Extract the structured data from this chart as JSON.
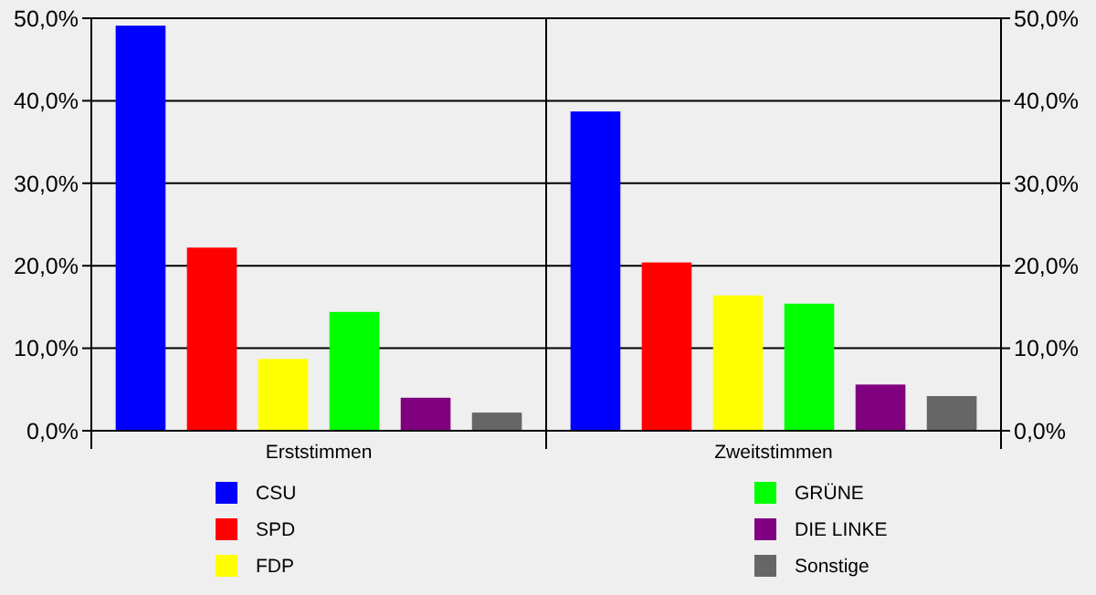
{
  "chart_data": {
    "type": "bar",
    "categories": [
      "Erststimmen",
      "Zweitstimmen"
    ],
    "series": [
      {
        "name": "CSU",
        "color": "#0000ff",
        "values": [
          49.1,
          38.7
        ]
      },
      {
        "name": "SPD",
        "color": "#ff0000",
        "values": [
          22.2,
          20.4
        ]
      },
      {
        "name": "FDP",
        "color": "#ffff00",
        "values": [
          8.7,
          16.4
        ]
      },
      {
        "name": "GRÜNE",
        "color": "#00ff00",
        "values": [
          14.4,
          15.4
        ]
      },
      {
        "name": "DIE LINKE",
        "color": "#800080",
        "values": [
          4.0,
          5.6
        ]
      },
      {
        "name": "Sonstige",
        "color": "#666666",
        "values": [
          2.2,
          4.2
        ]
      }
    ],
    "ylim": [
      0,
      50
    ],
    "yticks": [
      {
        "value": 0,
        "label": "0,0%"
      },
      {
        "value": 10,
        "label": "10,0%"
      },
      {
        "value": 20,
        "label": "20,0%"
      },
      {
        "value": 30,
        "label": "30,0%"
      },
      {
        "value": 40,
        "label": "40,0%"
      },
      {
        "value": 50,
        "label": "50,0%"
      }
    ],
    "y2lim": [
      0,
      50
    ],
    "y2ticks": [
      {
        "value": 0,
        "label": "0,0%"
      },
      {
        "value": 10,
        "label": "10,0%"
      },
      {
        "value": 20,
        "label": "20,0%"
      },
      {
        "value": 30,
        "label": "30,0%"
      },
      {
        "value": 40,
        "label": "40,0%"
      },
      {
        "value": 50,
        "label": "50,0%"
      }
    ],
    "grid": "y",
    "legend": "bottom"
  }
}
